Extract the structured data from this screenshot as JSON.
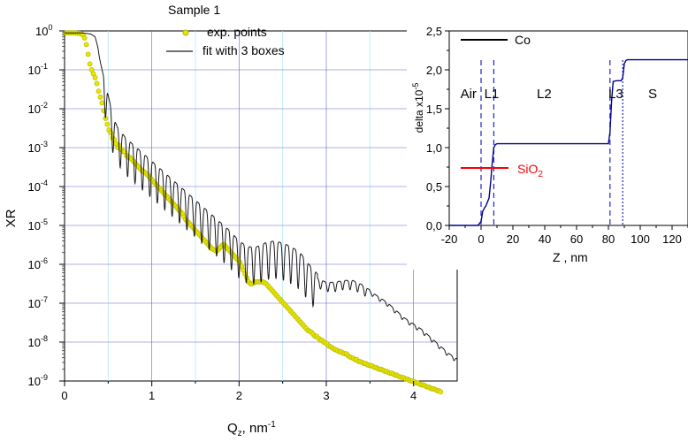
{
  "chart_data": [
    {
      "type": "scatter",
      "title": "Sample 1",
      "xlabel": "Q",
      "xlabel_sub": "z",
      "xlabel_unit": ", nm",
      "xlabel_sup": "-1",
      "ylabel": "XR",
      "xlim": [
        0,
        4.5
      ],
      "ylim_log10": [
        -9,
        0
      ],
      "y_scale": "log",
      "x_ticks": [
        "0",
        "1",
        "2",
        "3",
        "4"
      ],
      "y_tick_base": "10",
      "y_tick_exponents": [
        "0",
        "-1",
        "-2",
        "-3",
        "-4",
        "-5",
        "-6",
        "-7",
        "-8",
        "-9"
      ],
      "grid": true,
      "legend_position": "top-center",
      "colors": {
        "points": "#e8e600",
        "points_edge": "#b3b300",
        "fit": "#1a1a1a",
        "grid": "#6666cc",
        "minor_grid": "#b8e8f2"
      },
      "series": [
        {
          "name": "exp. points",
          "marker": "circle",
          "x_start": 0.01,
          "x_end": 4.48,
          "x_step": 0.02,
          "log10_values": [
            -0.05,
            -0.05,
            -0.05,
            -0.05,
            -0.05,
            -0.05,
            -0.05,
            -0.06,
            -0.06,
            -0.07,
            -0.1,
            -0.18,
            -0.35,
            -0.6,
            -0.85,
            -1.0,
            -1.1,
            -1.2,
            -1.35,
            -1.55,
            -1.7,
            -1.85,
            -2.05,
            -2.25,
            -2.4,
            -2.55,
            -2.62,
            -2.75,
            -2.8,
            -2.9,
            -3.0,
            -2.95,
            -3.05,
            -3.1,
            -3.1,
            -3.2,
            -3.25,
            -3.25,
            -3.3,
            -3.35,
            -3.4,
            -3.45,
            -3.5,
            -3.55,
            -3.6,
            -3.62,
            -3.65,
            -3.7,
            -3.75,
            -3.8,
            -3.85,
            -3.9,
            -3.95,
            -4.0,
            -4.05,
            -4.1,
            -4.15,
            -4.2,
            -4.25,
            -4.3,
            -4.35,
            -4.4,
            -4.45,
            -4.5,
            -4.55,
            -4.6,
            -4.65,
            -4.7,
            -4.78,
            -4.85,
            -4.9,
            -4.95,
            -5.0,
            -5.05,
            -5.1,
            -5.15,
            -5.2,
            -5.25,
            -5.3,
            -5.35,
            -5.4,
            -5.45,
            -5.5,
            -5.55,
            -5.6,
            -5.62,
            -5.65,
            -5.65,
            -5.6,
            -5.55,
            -5.5,
            -5.5,
            -5.55,
            -5.6,
            -5.65,
            -5.7,
            -5.75,
            -5.8,
            -5.85,
            -5.9,
            -5.95,
            -6.05,
            -6.15,
            -6.25,
            -6.35,
            -6.45,
            -6.5,
            -6.5,
            -6.48,
            -6.45,
            -6.45,
            -6.45,
            -6.45,
            -6.45,
            -6.47,
            -6.5,
            -6.55,
            -6.6,
            -6.65,
            -6.7,
            -6.75,
            -6.8,
            -6.85,
            -6.9,
            -6.95,
            -7.0,
            -7.05,
            -7.1,
            -7.15,
            -7.2,
            -7.25,
            -7.3,
            -7.35,
            -7.4,
            -7.45,
            -7.5,
            -7.55,
            -7.6,
            -7.65,
            -7.7,
            -7.72,
            -7.75,
            -7.8,
            -7.85,
            -7.85,
            -7.9,
            -7.95,
            -7.95,
            -8.0,
            -8.02,
            -8.05,
            -8.1,
            -8.12,
            -8.15,
            -8.18,
            -8.2,
            -8.22,
            -8.25,
            -8.25,
            -8.28,
            -8.3,
            -8.3,
            -8.35,
            -8.38,
            -8.4,
            -8.42,
            -8.45,
            -8.45,
            -8.5,
            -8.5,
            -8.52,
            -8.55,
            -8.55,
            -8.58,
            -8.6,
            -8.6,
            -8.62,
            -8.65,
            -8.65,
            -8.68,
            -8.7,
            -8.7,
            -8.72,
            -8.75,
            -8.75,
            -8.78,
            -8.8,
            -8.8,
            -8.82,
            -8.85,
            -8.85,
            -8.88,
            -8.9,
            -8.9,
            -8.92,
            -8.95,
            -8.95,
            -8.98,
            -9.0,
            -9.0,
            -9.02,
            -9.05,
            -9.05,
            -9.08,
            -9.1,
            -9.1,
            -9.12,
            -9.15,
            -9.15,
            -9.18,
            -9.2,
            -9.2,
            -9.22,
            -9.25,
            -9.25,
            -9.28
          ]
        },
        {
          "name": "fit with 3 boxes",
          "marker": "line",
          "x": [
            0.0,
            0.1,
            0.2,
            0.3,
            0.35,
            0.38,
            0.4,
            0.45,
            0.5,
            0.55,
            0.6,
            0.7,
            0.8,
            0.9,
            1.0,
            1.1,
            1.2,
            1.3,
            1.4,
            1.5,
            1.6,
            1.7,
            1.8,
            1.9,
            2.0,
            2.1,
            2.2,
            2.3,
            2.4,
            2.5,
            2.6,
            2.7,
            2.8,
            2.9,
            3.0,
            3.1,
            3.2,
            3.3,
            3.4,
            3.5,
            3.6,
            3.7,
            3.8,
            3.9,
            4.0,
            4.1,
            4.2,
            4.3,
            4.4,
            4.5
          ],
          "log10_values": [
            -0.05,
            -0.05,
            -0.05,
            -0.08,
            -0.15,
            -0.4,
            -0.7,
            -1.2,
            -1.8,
            -2.3,
            -2.6,
            -2.9,
            -3.1,
            -3.3,
            -3.5,
            -3.7,
            -3.9,
            -4.1,
            -4.3,
            -4.5,
            -4.7,
            -4.9,
            -5.1,
            -5.3,
            -5.55,
            -5.7,
            -5.7,
            -5.6,
            -5.55,
            -5.6,
            -5.7,
            -5.85,
            -6.15,
            -6.4,
            -6.5,
            -6.5,
            -6.45,
            -6.45,
            -6.55,
            -6.7,
            -6.85,
            -7.0,
            -7.2,
            -7.4,
            -7.55,
            -7.7,
            -7.9,
            -8.1,
            -8.3,
            -8.45
          ],
          "oscillation_amplitude_log10": 0.6
        }
      ]
    },
    {
      "type": "line",
      "xlabel": "Z , nm",
      "ylabel": "delta x10",
      "ylabel_sup": "-5",
      "xlim": [
        -20,
        130
      ],
      "ylim": [
        0,
        2.5
      ],
      "x_ticks": [
        "-20",
        "0",
        "20",
        "40",
        "60",
        "80",
        "100",
        "120"
      ],
      "y_ticks": [
        "0,0",
        "0,5",
        "1,0",
        "1,5",
        "2,0",
        "2,5"
      ],
      "grid": false,
      "colors": {
        "profile": "#00008b",
        "boundary": "#2222cc",
        "co_marker": "#000000",
        "sio2_marker": "#ff0000"
      },
      "layer_labels": [
        "Air",
        "L1",
        "L2",
        "L3",
        "S"
      ],
      "annotations": [
        {
          "text": "Co",
          "line_color": "#000000"
        },
        {
          "text": "SiO",
          "sub": "2",
          "line_color": "#ff0000"
        }
      ],
      "boundaries": [
        {
          "z": 0,
          "style": "dashed"
        },
        {
          "z": 8,
          "style": "dashed"
        },
        {
          "z": 81,
          "style": "dashed"
        },
        {
          "z": 89,
          "style": "dotted"
        }
      ],
      "series": [
        {
          "z": [
            -20,
            -5,
            -2,
            0,
            1,
            2,
            3,
            5,
            6,
            7,
            8,
            9,
            10,
            15,
            40,
            60,
            78,
            80,
            81,
            82,
            83,
            85,
            86,
            87,
            88,
            89,
            90,
            91,
            92,
            95,
            110,
            130
          ],
          "delta": [
            0,
            0,
            0,
            0.05,
            0.18,
            0.22,
            0.25,
            0.35,
            0.55,
            0.8,
            1.0,
            1.04,
            1.05,
            1.05,
            1.05,
            1.05,
            1.05,
            1.05,
            1.2,
            1.6,
            1.85,
            1.86,
            1.86,
            1.86,
            1.86,
            1.9,
            2.08,
            2.12,
            2.13,
            2.13,
            2.13,
            2.13
          ]
        }
      ]
    }
  ]
}
